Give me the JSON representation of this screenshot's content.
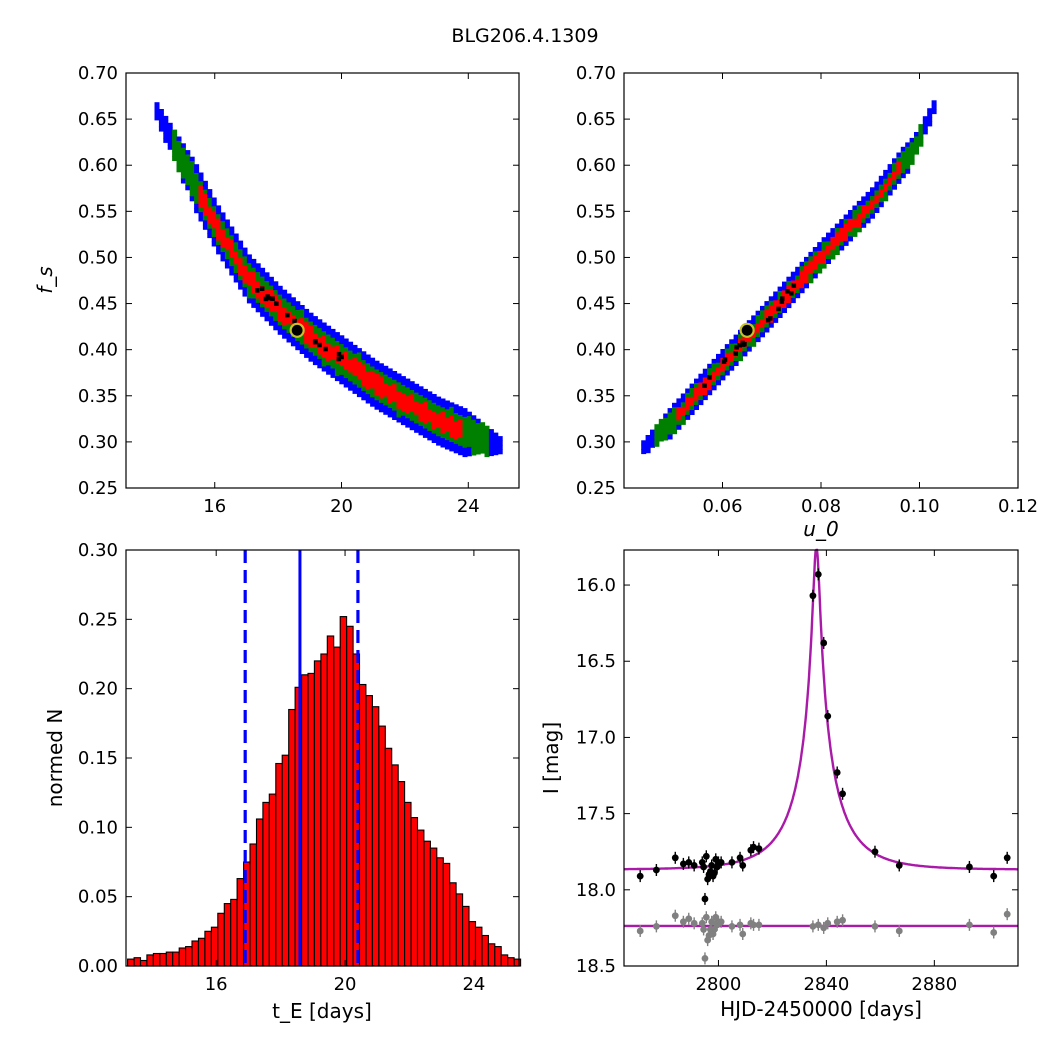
{
  "figure": {
    "title": "BLG206.4.1309"
  },
  "chart_data": [
    {
      "type": "heatmap",
      "panel": "tE-fs",
      "xlabel": "",
      "ylabel": "f_s",
      "xlim": [
        13.2,
        25.6
      ],
      "ylim": [
        0.25,
        0.7
      ],
      "xticks": [
        16,
        20,
        24
      ],
      "yticks": [
        0.25,
        0.3,
        0.35,
        0.4,
        0.45,
        0.5,
        0.55,
        0.6,
        0.65,
        0.7
      ],
      "levels": [
        {
          "name": "outer",
          "color": "#0000ff"
        },
        {
          "name": "middle",
          "color": "#008000"
        },
        {
          "name": "inner",
          "color": "#ff0000"
        },
        {
          "name": "core",
          "color": "#000000"
        }
      ],
      "ridge_x": [
        14.1,
        15.0,
        16.0,
        17.0,
        18.0,
        19.0,
        20.0,
        21.0,
        22.0,
        23.0,
        24.0,
        25.0
      ],
      "ridge_y": [
        0.66,
        0.6,
        0.535,
        0.48,
        0.445,
        0.415,
        0.39,
        0.365,
        0.345,
        0.325,
        0.31,
        0.296
      ],
      "best_fit": {
        "x": 18.6,
        "y": 0.421
      }
    },
    {
      "type": "heatmap",
      "panel": "u0-fs",
      "xlabel": "u_0",
      "ylabel": "",
      "xlim": [
        0.04,
        0.12
      ],
      "ylim": [
        0.25,
        0.7
      ],
      "xticks": [
        0.06,
        0.08,
        0.1,
        0.12
      ],
      "yticks": [
        0.25,
        0.3,
        0.35,
        0.4,
        0.45,
        0.5,
        0.55,
        0.6,
        0.65,
        0.7
      ],
      "ridge_x": [
        0.0435,
        0.0505,
        0.06,
        0.07,
        0.08,
        0.09,
        0.0985,
        0.1025
      ],
      "ridge_y": [
        0.296,
        0.33,
        0.387,
        0.445,
        0.505,
        0.56,
        0.62,
        0.665
      ],
      "best_fit": {
        "x": 0.065,
        "y": 0.421
      }
    },
    {
      "type": "bar",
      "panel": "tE-histogram",
      "xlabel": "t_E [days]",
      "ylabel": "normed N",
      "xlim": [
        13.2,
        25.4
      ],
      "ylim": [
        0,
        0.3
      ],
      "xticks": [
        16,
        20,
        24
      ],
      "yticks": [
        0.0,
        0.05,
        0.1,
        0.15,
        0.2,
        0.25,
        0.3
      ],
      "bin_start": 13.25,
      "bin_width": 0.2,
      "values": [
        0.005,
        0.006,
        0.004,
        0.008,
        0.009,
        0.009,
        0.01,
        0.01,
        0.013,
        0.014,
        0.018,
        0.02,
        0.025,
        0.028,
        0.038,
        0.045,
        0.048,
        0.063,
        0.075,
        0.088,
        0.106,
        0.118,
        0.124,
        0.146,
        0.152,
        0.185,
        0.201,
        0.21,
        0.211,
        0.22,
        0.225,
        0.238,
        0.23,
        0.252,
        0.245,
        0.225,
        0.203,
        0.195,
        0.187,
        0.173,
        0.157,
        0.145,
        0.133,
        0.118,
        0.107,
        0.098,
        0.09,
        0.085,
        0.078,
        0.074,
        0.06,
        0.052,
        0.043,
        0.032,
        0.028,
        0.022,
        0.016,
        0.014,
        0.008,
        0.006,
        0.005
      ],
      "bar_color": "#ff0000",
      "median": 18.6,
      "lower": 16.9,
      "upper": 20.4,
      "line_color": "#0000ff"
    },
    {
      "type": "scatter",
      "panel": "light-curve",
      "xlabel": "HJD-2450000 [days]",
      "ylabel": "I [mag]",
      "xlim": [
        2765,
        2911
      ],
      "ylim": [
        18.5,
        15.77
      ],
      "xticks": [
        2800,
        2840,
        2880
      ],
      "yticks": [
        16.0,
        16.5,
        17.0,
        17.5,
        18.0,
        18.5
      ],
      "model": {
        "t0": 2836.3,
        "tE": 18.6,
        "u0": 0.065,
        "fs": 0.421,
        "I_base": 17.868,
        "color": "#aa1aa8"
      },
      "residual_offset": 18.237,
      "residual_line": 18.237,
      "series": [
        {
          "name": "data",
          "color": "#000000",
          "x": [
            2771,
            2777,
            2784,
            2787,
            2789,
            2791,
            2794,
            2794.5,
            2795,
            2795.5,
            2796,
            2796.5,
            2797,
            2797.5,
            2798,
            2798.5,
            2799,
            2799.5,
            2800,
            2801,
            2805,
            2808,
            2809,
            2812,
            2813,
            2815,
            2835,
            2837,
            2839,
            2840.5,
            2844,
            2846,
            2858,
            2867,
            2893,
            2902,
            2907
          ],
          "y": [
            17.91,
            17.87,
            17.79,
            17.83,
            17.82,
            17.84,
            17.82,
            17.85,
            18.06,
            17.78,
            17.93,
            17.9,
            17.88,
            17.84,
            17.91,
            17.89,
            17.8,
            17.85,
            17.82,
            17.82,
            17.82,
            17.79,
            17.84,
            17.74,
            17.72,
            17.73,
            16.07,
            15.93,
            16.38,
            16.86,
            17.23,
            17.37,
            17.75,
            17.84,
            17.85,
            17.91,
            17.79
          ]
        },
        {
          "name": "residuals",
          "color": "#808080",
          "x": [
            2771,
            2777,
            2784,
            2787,
            2789,
            2791,
            2794,
            2794.5,
            2795,
            2795.5,
            2796,
            2796.5,
            2797,
            2797.5,
            2798,
            2798.5,
            2799,
            2799.5,
            2800,
            2801,
            2805,
            2808,
            2809,
            2812,
            2813,
            2815,
            2835,
            2837,
            2839,
            2840.5,
            2844,
            2846,
            2858,
            2867,
            2893,
            2902,
            2907
          ],
          "y": [
            18.27,
            18.24,
            18.17,
            18.21,
            18.19,
            18.22,
            18.22,
            18.26,
            18.45,
            18.18,
            18.33,
            18.3,
            18.26,
            18.21,
            18.29,
            18.26,
            18.18,
            18.23,
            18.21,
            18.21,
            18.24,
            18.23,
            18.29,
            18.22,
            18.23,
            18.23,
            18.24,
            18.23,
            18.25,
            18.22,
            18.21,
            18.2,
            18.24,
            18.27,
            18.23,
            18.28,
            18.16
          ]
        }
      ]
    }
  ]
}
